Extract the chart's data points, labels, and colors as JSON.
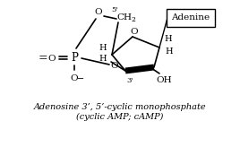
{
  "title_line1": "Adenosine 3’, 5’-cyclic monophosphate",
  "title_line2": "(cyclic AMP; cAMP)",
  "adenine_label": "Adenine",
  "background_color": "#ffffff",
  "line_color": "#000000",
  "text_color": "#000000",
  "figsize": [
    2.68,
    1.83
  ],
  "dpi": 100
}
